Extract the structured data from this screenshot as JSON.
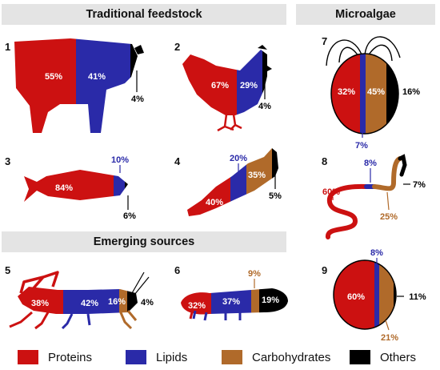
{
  "headers": {
    "traditional": "Traditional feedstock",
    "microalgae": "Microalgae",
    "emerging": "Emerging sources"
  },
  "colors": {
    "proteins": "#cc1111",
    "lipids": "#2a2aa8",
    "carbohydrates": "#b06a2a",
    "others": "#000000"
  },
  "panels": [
    {
      "num": "1",
      "organism": "cow",
      "proteins": "55%",
      "lipids": "41%",
      "others": "4%"
    },
    {
      "num": "2",
      "organism": "chicken",
      "proteins": "67%",
      "lipids": "29%",
      "others": "4%"
    },
    {
      "num": "3",
      "organism": "fish",
      "proteins": "84%",
      "lipids": "10%",
      "others": "6%"
    },
    {
      "num": "4",
      "organism": "sweet-potato",
      "proteins": "40%",
      "lipids": "20%",
      "carbohydrates": "35%",
      "others": "5%"
    },
    {
      "num": "5",
      "organism": "grasshopper",
      "proteins": "38%",
      "lipids": "42%",
      "carbohydrates": "16%",
      "others": "4%"
    },
    {
      "num": "6",
      "organism": "larva",
      "proteins": "32%",
      "lipids": "37%",
      "carbohydrates": "9%",
      "others": "19%"
    },
    {
      "num": "7",
      "organism": "chlamydomonas",
      "proteins": "32%",
      "lipids": "7%",
      "carbohydrates": "45%",
      "others": "16%"
    },
    {
      "num": "8",
      "organism": "spirulina",
      "proteins": "60%",
      "lipids": "8%",
      "carbohydrates": "25%",
      "others": "7%"
    },
    {
      "num": "9",
      "organism": "chlorella",
      "proteins": "60%",
      "lipids": "8%",
      "carbohydrates": "21%",
      "others": "11%"
    }
  ],
  "legend": [
    {
      "label": "Proteins",
      "color": "#cc1111"
    },
    {
      "label": "Lipids",
      "color": "#2a2aa8"
    },
    {
      "label": "Carbohydrates",
      "color": "#b06a2a"
    },
    {
      "label": "Others",
      "color": "#000000"
    }
  ]
}
